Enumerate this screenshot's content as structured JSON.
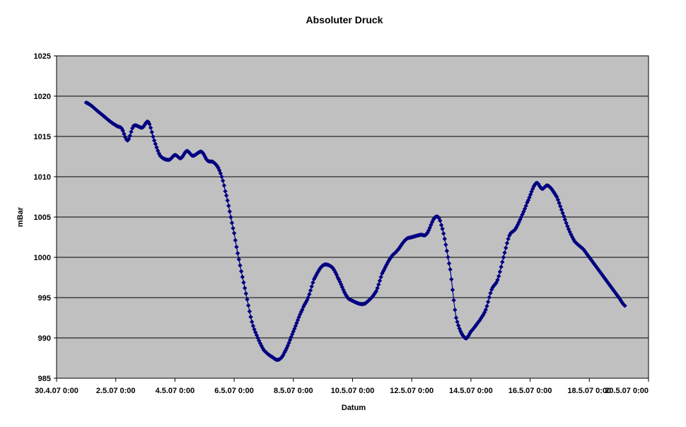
{
  "chart_data": {
    "type": "scatter",
    "title": "Absoluter Druck",
    "xlabel": "Datum",
    "ylabel": "mBar",
    "x_ticks": [
      "30.4.07 0:00",
      "2.5.07 0:00",
      "4.5.07 0:00",
      "6.5.07 0:00",
      "8.5.07 0:00",
      "10.5.07 0:00",
      "12.5.07 0:00",
      "14.5.07 0:00",
      "16.5.07 0:00",
      "18.5.07 0:00",
      "20.5.07 0:00"
    ],
    "xlim_days": [
      0,
      20
    ],
    "y_ticks": [
      "985",
      "990",
      "995",
      "1000",
      "1005",
      "1010",
      "1015",
      "1020",
      "1025"
    ],
    "ylim": [
      985,
      1025
    ],
    "grid": "horizontal",
    "legend": "none",
    "colors": {
      "plot_bg": "#c0c0c0",
      "series": "#000080",
      "gridline": "#000000"
    },
    "series": [
      {
        "name": "",
        "x_days": [
          1.0,
          1.5,
          2.0,
          2.2,
          2.4,
          2.6,
          2.9,
          3.1,
          3.3,
          3.5,
          3.8,
          4.0,
          4.2,
          4.4,
          4.6,
          4.9,
          5.1,
          5.3,
          5.5,
          5.7,
          6.0,
          6.2,
          6.4,
          6.6,
          6.8,
          7.0,
          7.3,
          7.5,
          7.7,
          8.0,
          8.3,
          8.5,
          8.7,
          9.0,
          9.3,
          9.5,
          9.8,
          10.0,
          10.3,
          10.5,
          10.8,
          11.0,
          11.3,
          11.5,
          11.8,
          12.0,
          12.3,
          12.5,
          12.8,
          13.0,
          13.3,
          13.5,
          13.8,
          14.0,
          14.3,
          14.5,
          14.7,
          14.9,
          15.1,
          15.3,
          15.5,
          15.7,
          15.9,
          16.2,
          16.4,
          16.6,
          16.9,
          17.1,
          17.3,
          17.5,
          17.8,
          18.0,
          18.2,
          18.4,
          18.6,
          18.8,
          19.0,
          19.2
        ],
        "values": [
          1019.2,
          1017.8,
          1016.4,
          1016.0,
          1014.5,
          1016.3,
          1016.1,
          1016.8,
          1014.5,
          1012.6,
          1012.1,
          1012.7,
          1012.3,
          1013.2,
          1012.6,
          1013.1,
          1012.0,
          1011.8,
          1010.8,
          1008.2,
          1003.0,
          999.0,
          995.5,
          992.0,
          990.0,
          988.5,
          987.6,
          987.3,
          988.2,
          990.8,
          993.5,
          995.0,
          997.3,
          999.0,
          998.8,
          997.5,
          995.2,
          994.6,
          994.2,
          994.5,
          995.8,
          998.0,
          1000.0,
          1000.8,
          1002.2,
          1002.5,
          1002.8,
          1002.9,
          1005.0,
          1004.0,
          998.5,
          992.5,
          990.0,
          990.8,
          992.2,
          993.5,
          996.0,
          997.2,
          1000.0,
          1002.7,
          1003.5,
          1005.0,
          1006.8,
          1009.2,
          1008.5,
          1008.9,
          1007.5,
          1005.5,
          1003.5,
          1002.0,
          1001.0,
          1000.0,
          999.0,
          998.0,
          997.0,
          996.0,
          995.0,
          994.0
        ]
      }
    ]
  }
}
